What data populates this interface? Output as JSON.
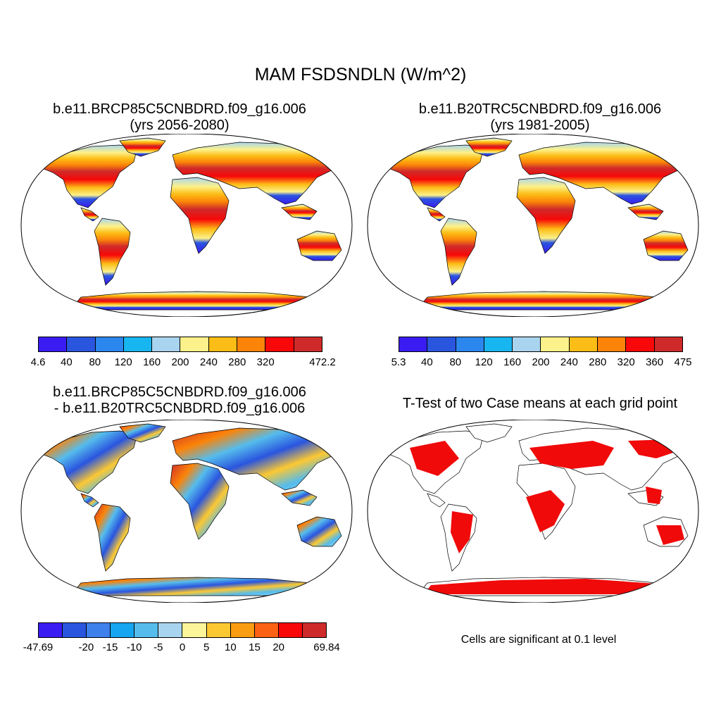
{
  "title": "MAM FSDSNDLN (W/m^2)",
  "panels": {
    "future": {
      "title_line1": "b.e11.BRCP85C5CNBDRD.f09_g16.006",
      "title_line2": "(yrs 2056-2080)"
    },
    "baseline": {
      "title_line1": "b.e11.B20TRC5CNBDRD.f09_g16.006",
      "title_line2": "(yrs 1981-2005)"
    },
    "difference": {
      "title_line1": "b.e11.BRCP85C5CNBDRD.f09_g16.006",
      "title_line2": "- b.e11.B20TRC5CNBDRD.f09_g16.006"
    },
    "ttest": {
      "title_line1": "T-Test of two Case means at each grid point",
      "note": "Cells are significant at 0.1 level"
    }
  },
  "colorbars": {
    "future": {
      "colors": [
        "#3a1cf2",
        "#2a55df",
        "#2b86ee",
        "#18b6f0",
        "#a9d4ef",
        "#fcf18a",
        "#fcbd16",
        "#fb8409",
        "#f80808",
        "#cf2a2a"
      ],
      "labels": [
        "4.6",
        "40",
        "80",
        "120",
        "160",
        "200",
        "240",
        "280",
        "320",
        "",
        "472.2"
      ]
    },
    "baseline": {
      "colors": [
        "#3a1cf2",
        "#2a55df",
        "#2b86ee",
        "#18b6f0",
        "#a9d4ef",
        "#fcf18a",
        "#fcbd16",
        "#fb8409",
        "#f80808",
        "#cf2a2a"
      ],
      "labels": [
        "5.3",
        "40",
        "80",
        "120",
        "160",
        "200",
        "240",
        "280",
        "320",
        "360",
        "475"
      ]
    },
    "difference": {
      "colors": [
        "#3a1cf2",
        "#2a55df",
        "#3e80ec",
        "#16a5f0",
        "#55bcec",
        "#a9d4ef",
        "#fcf59a",
        "#fcc832",
        "#fb9d12",
        "#fb6214",
        "#f80808",
        "#cf2a2a"
      ],
      "labels": [
        "-47.69",
        "",
        "-20",
        "-15",
        "-10",
        "-5",
        "0",
        "5",
        "10",
        "15",
        "20",
        "",
        "69.84"
      ]
    }
  }
}
